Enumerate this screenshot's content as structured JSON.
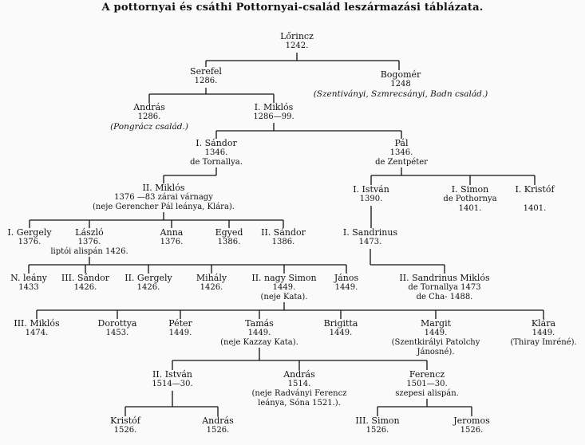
{
  "title": "A pottornyai és csáthi Pottornyai-család leszármazási táblázata.",
  "nodes": {
    "lorincz": {
      "name": "Lőrincz",
      "l2": "1242."
    },
    "serefel": {
      "name": "Serefel",
      "l2": "1286."
    },
    "bogomer": {
      "name": "Bogomér",
      "l2": "1248",
      "note": "(Szentiványi, Szmrecsányi, Badn család.)"
    },
    "andras1": {
      "name": "András",
      "l2": "1286.",
      "note": "(Pongrácz család.)"
    },
    "miklos1": {
      "name": "I. Miklós",
      "l2": "1286—99."
    },
    "sandor1": {
      "name": "I. Sándor",
      "l2": "1346.",
      "l3": "de Tornallya."
    },
    "pal": {
      "name": "Pál",
      "l2": "1346.",
      "l3": "de Zentpéter"
    },
    "miklos2": {
      "name": "II. Miklós",
      "l2": "1376 —83 zárai várnagy",
      "l3": "(neje Gerencher Pál leánya, Klára)."
    },
    "istvan1": {
      "name": "I. István",
      "l2": "1390."
    },
    "simon1": {
      "name": "I. Simon",
      "l2": "de Pothornya",
      "l3": "1401."
    },
    "kristof1": {
      "name": "I. Kristóf",
      "l2": "1401."
    },
    "gergely1": {
      "name": "I. Gergely",
      "l2": "1376."
    },
    "laszlo": {
      "name": "László",
      "l2": "1376.",
      "l3": "liptói alispán 1426."
    },
    "anna": {
      "name": "Anna",
      "l2": "1376."
    },
    "egyed": {
      "name": "Egyed",
      "l2": "1386."
    },
    "sandor2": {
      "name": "II. Sándor",
      "l2": "1386."
    },
    "sandrinus1": {
      "name": "I. Sandrinus",
      "l2": "1473."
    },
    "n_leany": {
      "name": "N. leány",
      "l2": "1433"
    },
    "sandor3": {
      "name": "III. Sándor",
      "l2": "1426."
    },
    "gergely2": {
      "name": "II. Gergely",
      "l2": "1426."
    },
    "mihaly": {
      "name": "Mihály",
      "l2": "1426."
    },
    "simon2": {
      "name": "II. nagy Simon",
      "l2": "1449.",
      "l3": "(neje Kata)."
    },
    "janos": {
      "name": "János",
      "l2": "1449."
    },
    "sandrinus2": {
      "name": "II. Sandrinus Miklós",
      "l2": "de Tornallya 1473",
      "l3": "de Cha- 1488."
    },
    "miklos3": {
      "name": "III. Miklós",
      "l2": "1474."
    },
    "dorottya": {
      "name": "Dorottya",
      "l2": "1453."
    },
    "peter": {
      "name": "Péter",
      "l2": "1449."
    },
    "tamas": {
      "name": "Tamás",
      "l2": "1449.",
      "l3": "(neje Kazzay Kata)."
    },
    "brigitta": {
      "name": "Brigitta",
      "l2": "1449."
    },
    "margit": {
      "name": "Margit",
      "l2": "1449.",
      "l3": "(Szentkirályi Patolchy",
      "l4": "Jánosné)."
    },
    "klara": {
      "name": "Klára",
      "l2": "1449.",
      "l3": "(Thiray Imréné)."
    },
    "istvan2": {
      "name": "II. István",
      "l2": "1514—30."
    },
    "andras2": {
      "name": "András",
      "l2": "1514.",
      "l3": "(neje Radványi Ferencz",
      "l4": "leánya, Sóna 1521.)."
    },
    "ferencz": {
      "name": "Ferencz",
      "l2": "1501—30.",
      "l3": "szepesi alispán."
    },
    "kristof2": {
      "name": "Kristóf",
      "l2": "1526."
    },
    "andras3": {
      "name": "András",
      "l2": "1526."
    },
    "simon3": {
      "name": "III. Simon",
      "l2": "1526."
    },
    "jeromos": {
      "name": "Jeromos",
      "l2": "1526."
    }
  }
}
